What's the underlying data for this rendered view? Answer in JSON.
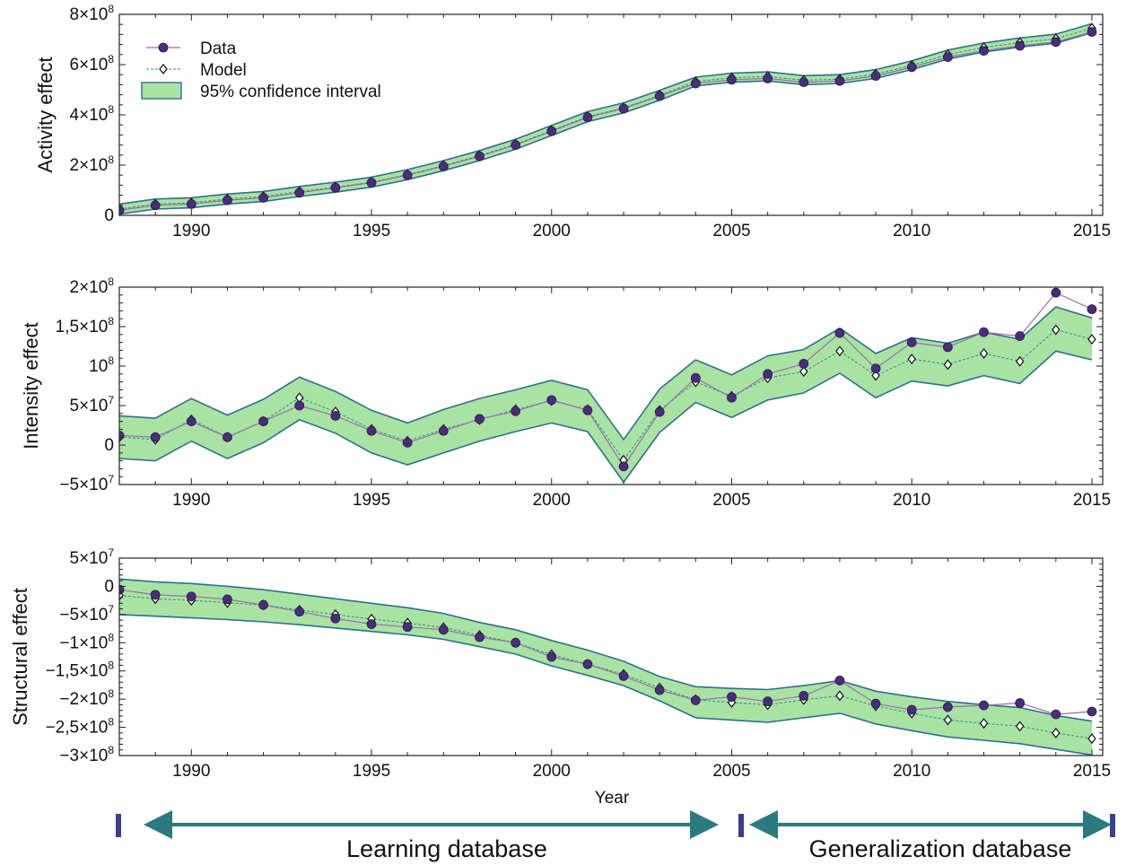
{
  "colors": {
    "data": "#4a2d7a",
    "data_line": "#9b6fa8",
    "model_line": "#2f8f7d",
    "band_fill": "#a9e3a3",
    "band_edge": "#2f6f8f",
    "arrow": "#2a7a80",
    "marker_bar": "#3a3f8f"
  },
  "chart_data": [
    {
      "type": "line",
      "ylabel": "Activity effect",
      "xlabel": "",
      "xlim": [
        1988,
        2015.3
      ],
      "ylim": [
        0,
        800000000
      ],
      "y_ticks": [
        {
          "v": 0,
          "base": "0",
          "exp": ""
        },
        {
          "v": 200000000,
          "base": "2×10",
          "exp": "8"
        },
        {
          "v": 400000000,
          "base": "4×10",
          "exp": "8"
        },
        {
          "v": 600000000,
          "base": "6×10",
          "exp": "8"
        },
        {
          "v": 800000000,
          "base": "8×10",
          "exp": "8"
        }
      ],
      "x_ticks": [
        "1990",
        "1995",
        "2000",
        "2005",
        "2010",
        "2015"
      ],
      "legend": {
        "position": "top-left",
        "entries": [
          "Data",
          "Model",
          "95% confidence interval"
        ]
      },
      "x": [
        1988,
        1989,
        1990,
        1991,
        1992,
        1993,
        1994,
        1995,
        1996,
        1997,
        1998,
        1999,
        2000,
        2001,
        2002,
        2003,
        2004,
        2005,
        2006,
        2007,
        2008,
        2009,
        2010,
        2011,
        2012,
        2013,
        2014,
        2015
      ],
      "series": [
        {
          "name": "Data",
          "values": [
            20000000,
            40000000,
            45000000,
            60000000,
            70000000,
            90000000,
            110000000,
            130000000,
            160000000,
            195000000,
            235000000,
            280000000,
            335000000,
            390000000,
            425000000,
            475000000,
            525000000,
            540000000,
            545000000,
            530000000,
            535000000,
            555000000,
            590000000,
            630000000,
            655000000,
            675000000,
            690000000,
            730000000
          ]
        },
        {
          "name": "Model",
          "values": [
            25000000,
            45000000,
            50000000,
            65000000,
            75000000,
            95000000,
            112000000,
            132000000,
            162000000,
            198000000,
            238000000,
            283000000,
            338000000,
            393000000,
            428000000,
            478000000,
            532000000,
            548000000,
            553000000,
            538000000,
            542000000,
            562000000,
            597000000,
            640000000,
            668000000,
            688000000,
            703000000,
            745000000
          ]
        },
        {
          "name": "95% confidence interval",
          "lower": [
            5000000,
            25000000,
            30000000,
            45000000,
            55000000,
            75000000,
            92000000,
            112000000,
            142000000,
            178000000,
            218000000,
            263000000,
            318000000,
            373000000,
            408000000,
            458000000,
            515000000,
            530000000,
            535000000,
            520000000,
            525000000,
            545000000,
            580000000,
            622000000,
            650000000,
            670000000,
            685000000,
            727000000
          ],
          "upper": [
            45000000,
            65000000,
            70000000,
            85000000,
            95000000,
            115000000,
            132000000,
            152000000,
            182000000,
            218000000,
            258000000,
            303000000,
            358000000,
            413000000,
            448000000,
            498000000,
            550000000,
            566000000,
            571000000,
            556000000,
            560000000,
            580000000,
            615000000,
            658000000,
            686000000,
            706000000,
            721000000,
            763000000
          ]
        }
      ]
    },
    {
      "type": "line",
      "ylabel": "Intensity effect",
      "xlabel": "",
      "xlim": [
        1988,
        2015.3
      ],
      "ylim": [
        -50000000,
        200000000
      ],
      "y_ticks": [
        {
          "v": -50000000,
          "base": "−5×10",
          "exp": "7"
        },
        {
          "v": 0,
          "base": "0",
          "exp": ""
        },
        {
          "v": 50000000,
          "base": "5×10",
          "exp": "7"
        },
        {
          "v": 100000000,
          "base": "10",
          "exp": "8"
        },
        {
          "v": 150000000,
          "base": "1,5×10",
          "exp": "8"
        },
        {
          "v": 200000000,
          "base": "2×10",
          "exp": "8"
        }
      ],
      "x_ticks": [
        "1990",
        "1995",
        "2000",
        "2005",
        "2010",
        "2015"
      ],
      "x": [
        1988,
        1989,
        1990,
        1991,
        1992,
        1993,
        1994,
        1995,
        1996,
        1997,
        1998,
        1999,
        2000,
        2001,
        2002,
        2003,
        2004,
        2005,
        2006,
        2007,
        2008,
        2009,
        2010,
        2011,
        2012,
        2013,
        2014,
        2015
      ],
      "series": [
        {
          "name": "Data",
          "values": [
            12000000,
            10000000,
            30000000,
            10000000,
            30000000,
            50000000,
            37000000,
            18000000,
            3000000,
            18000000,
            33000000,
            43000000,
            57000000,
            44000000,
            -27000000,
            42000000,
            85000000,
            60000000,
            90000000,
            103000000,
            142000000,
            97000000,
            130000000,
            124000000,
            143000000,
            138000000,
            193000000,
            172000000
          ]
        },
        {
          "name": "Model",
          "values": [
            10000000,
            7000000,
            32000000,
            10000000,
            30000000,
            60000000,
            42000000,
            20000000,
            5000000,
            20000000,
            32000000,
            45000000,
            56000000,
            45000000,
            -19000000,
            44000000,
            80000000,
            62000000,
            85000000,
            93000000,
            119000000,
            88000000,
            109000000,
            102000000,
            116000000,
            106000000,
            146000000,
            134000000
          ]
        },
        {
          "name": "95% confidence interval",
          "lower": [
            -17000000,
            -20000000,
            5000000,
            -17000000,
            3000000,
            32000000,
            15000000,
            -10000000,
            -25000000,
            -10000000,
            5000000,
            17000000,
            28000000,
            17000000,
            -47000000,
            16000000,
            54000000,
            35000000,
            57000000,
            66000000,
            91000000,
            60000000,
            81000000,
            75000000,
            88000000,
            78000000,
            119000000,
            108000000
          ],
          "upper": [
            37000000,
            34000000,
            59000000,
            38000000,
            58000000,
            86000000,
            68000000,
            44000000,
            28000000,
            45000000,
            59000000,
            70000000,
            82000000,
            70000000,
            7000000,
            71000000,
            108000000,
            89000000,
            113000000,
            121000000,
            148000000,
            116000000,
            136000000,
            129000000,
            143000000,
            134000000,
            175000000,
            161000000
          ]
        }
      ]
    },
    {
      "type": "line",
      "ylabel": "Structural effect",
      "xlabel": "Year",
      "xlim": [
        1988,
        2015.3
      ],
      "ylim": [
        -300000000,
        50000000
      ],
      "y_ticks": [
        {
          "v": -300000000,
          "base": "−3×10",
          "exp": "8"
        },
        {
          "v": -250000000,
          "base": "−2,5×10",
          "exp": "8"
        },
        {
          "v": -200000000,
          "base": "−2×10",
          "exp": "8"
        },
        {
          "v": -150000000,
          "base": "−1,5×10",
          "exp": "8"
        },
        {
          "v": -100000000,
          "base": "−1×10",
          "exp": "8"
        },
        {
          "v": -50000000,
          "base": "−5×10",
          "exp": "7"
        },
        {
          "v": 0,
          "base": "0",
          "exp": ""
        },
        {
          "v": 50000000,
          "base": "5×10",
          "exp": "7"
        }
      ],
      "x_ticks": [
        "1990",
        "1995",
        "2000",
        "2005",
        "2010",
        "2015"
      ],
      "x": [
        1988,
        1989,
        1990,
        1991,
        1992,
        1993,
        1994,
        1995,
        1996,
        1997,
        1998,
        1999,
        2000,
        2001,
        2002,
        2003,
        2004,
        2005,
        2006,
        2007,
        2008,
        2009,
        2010,
        2011,
        2012,
        2013,
        2014,
        2015
      ],
      "series": [
        {
          "name": "Data",
          "values": [
            -6000000,
            -15000000,
            -18000000,
            -23000000,
            -33000000,
            -45000000,
            -57000000,
            -67000000,
            -72000000,
            -77000000,
            -90000000,
            -100000000,
            -125000000,
            -138000000,
            -159000000,
            -184000000,
            -202000000,
            -196000000,
            -204000000,
            -194000000,
            -167000000,
            -208000000,
            -219000000,
            -214000000,
            -211000000,
            -207000000,
            -227000000,
            -222000000
          ]
        },
        {
          "name": "Model",
          "values": [
            -16000000,
            -22000000,
            -25000000,
            -29000000,
            -33000000,
            -42000000,
            -50000000,
            -58000000,
            -65000000,
            -73000000,
            -87000000,
            -100000000,
            -121000000,
            -138000000,
            -156000000,
            -180000000,
            -201000000,
            -206000000,
            -210000000,
            -201000000,
            -194000000,
            -212000000,
            -225000000,
            -237000000,
            -243000000,
            -248000000,
            -260000000,
            -270000000
          ]
        },
        {
          "name": "95% confidence interval",
          "lower": [
            -50000000,
            -53000000,
            -56000000,
            -59000000,
            -63000000,
            -68000000,
            -74000000,
            -80000000,
            -86000000,
            -94000000,
            -107000000,
            -120000000,
            -141000000,
            -158000000,
            -176000000,
            -203000000,
            -233000000,
            -237000000,
            -241000000,
            -233000000,
            -225000000,
            -244000000,
            -256000000,
            -267000000,
            -273000000,
            -279000000,
            -289000000,
            -299000000
          ],
          "upper": [
            13000000,
            8000000,
            5000000,
            0,
            -6000000,
            -14000000,
            -22000000,
            -30000000,
            -38000000,
            -48000000,
            -64000000,
            -77000000,
            -96000000,
            -113000000,
            -133000000,
            -160000000,
            -178000000,
            -181000000,
            -183000000,
            -176000000,
            -167000000,
            -186000000,
            -196000000,
            -204000000,
            -210000000,
            -215000000,
            -229000000,
            -239000000
          ]
        }
      ]
    }
  ],
  "annotations": {
    "learning": "Learning database",
    "generalization": "Generalization database"
  }
}
